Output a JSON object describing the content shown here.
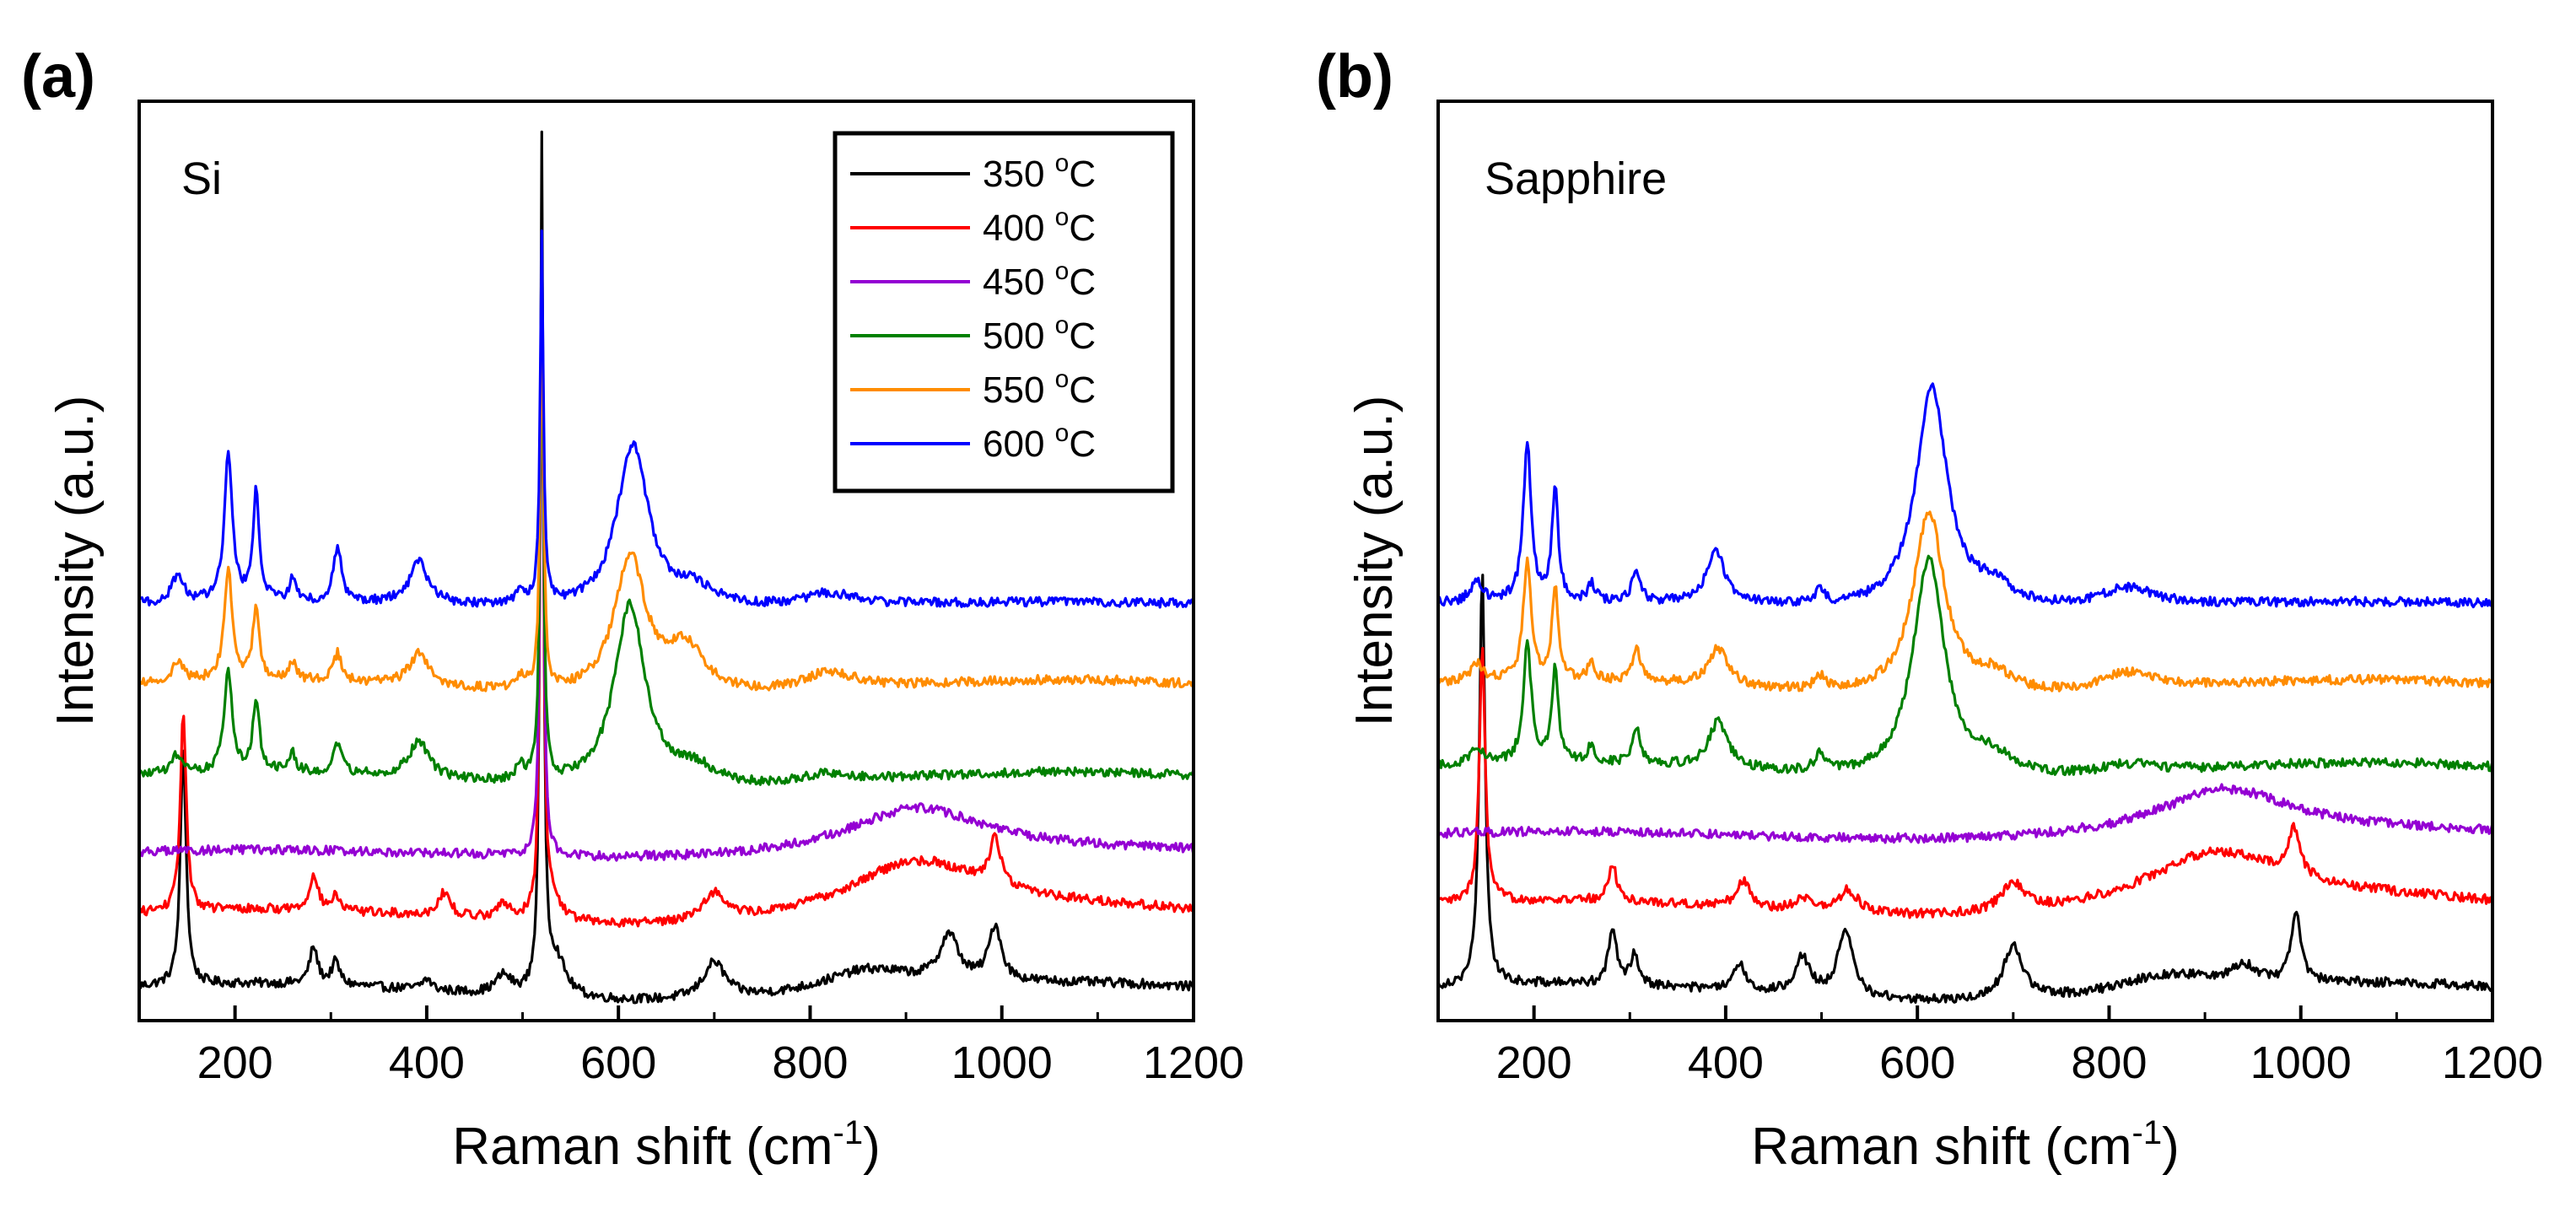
{
  "chart_data": [
    {
      "type": "line",
      "panel_label": "(a)",
      "substrate_label": "Si",
      "xlabel": "Raman shift (cm",
      "xlabel_sup": "-1",
      "xlabel_end": ")",
      "ylabel": "Intensity (a.u.)",
      "xlim": [
        100,
        1200
      ],
      "ylim": [
        0,
        100
      ],
      "xticks": [
        200,
        400,
        600,
        800,
        1000,
        1200
      ],
      "legend_position": "top-right",
      "series": [
        {
          "name": "350 °C",
          "label_main": "350 ",
          "label_sup": "o",
          "label_unit": "C",
          "color": "#000000",
          "baseline": 3,
          "slope": 1,
          "peaks": [
            [
              146,
              26,
              3.5
            ],
            [
              282,
              4,
              5
            ],
            [
              305,
              2.5,
              5
            ],
            [
              400,
              1.2,
              6
            ],
            [
              480,
              2,
              10
            ],
            [
              520,
              92,
              2
            ],
            [
              535,
              4,
              12
            ],
            [
              700,
              4,
              14
            ],
            [
              860,
              2.5,
              60
            ],
            [
              945,
              5,
              12
            ],
            [
              993,
              6,
              8
            ]
          ]
        },
        {
          "name": "400 °C",
          "label_main": "400 ",
          "label_sup": "o",
          "label_unit": "C",
          "color": "#ff0000",
          "baseline": 11,
          "slope": 1,
          "peaks": [
            [
              146,
              22,
              3.5
            ],
            [
              282,
              4,
              5
            ],
            [
              305,
              1.5,
              5
            ],
            [
              418,
              2.5,
              8
            ],
            [
              480,
              1.5,
              10
            ],
            [
              520,
              72,
              2
            ],
            [
              530,
              2.5,
              12
            ],
            [
              700,
              3,
              15
            ],
            [
              910,
              6,
              90
            ],
            [
              993,
              5,
              7
            ]
          ]
        },
        {
          "name": "450 °C",
          "label_main": "450 ",
          "label_sup": "o",
          "label_unit": "C",
          "color": "#9400d3",
          "baseline": 18,
          "slope": 0.5,
          "peaks": [
            [
              520,
              65,
              2
            ],
            [
              910,
              5,
              85
            ]
          ]
        },
        {
          "name": "500 °C",
          "label_main": "500 ",
          "label_sup": "o",
          "label_unit": "C",
          "color": "#008000",
          "baseline": 26,
          "slope": 1,
          "peaks": [
            [
              140,
              2,
              7
            ],
            [
              193,
              11,
              5
            ],
            [
              222,
              8,
              4
            ],
            [
              260,
              2,
              4
            ],
            [
              307,
              3,
              5
            ],
            [
              392,
              4,
              12
            ],
            [
              498,
              1.5,
              6
            ],
            [
              520,
              55,
              2
            ],
            [
              612,
              20,
              20
            ],
            [
              680,
              2,
              25
            ],
            [
              820,
              1,
              35
            ]
          ]
        },
        {
          "name": "550 °C",
          "label_main": "550 ",
          "label_sup": "o",
          "label_unit": "C",
          "color": "#ff8c00",
          "baseline": 36,
          "slope": 1,
          "peaks": [
            [
              140,
              2,
              7
            ],
            [
              193,
              12,
              5
            ],
            [
              222,
              8,
              4
            ],
            [
              260,
              2,
              4
            ],
            [
              307,
              3,
              5
            ],
            [
              392,
              3.5,
              12
            ],
            [
              498,
              1.5,
              6
            ],
            [
              520,
              45,
              2
            ],
            [
              612,
              15,
              20
            ],
            [
              670,
              5,
              25
            ],
            [
              820,
              2,
              35
            ]
          ]
        },
        {
          "name": "600 °C",
          "label_main": "600 ",
          "label_sup": "o",
          "label_unit": "C",
          "color": "#0000ff",
          "baseline": 45,
          "slope": 0.5,
          "peaks": [
            [
              140,
              3,
              7
            ],
            [
              193,
              16,
              5
            ],
            [
              222,
              12,
              4
            ],
            [
              260,
              2.5,
              4
            ],
            [
              307,
              6,
              5
            ],
            [
              392,
              4.5,
              12
            ],
            [
              498,
              1.5,
              6
            ],
            [
              520,
              40,
              2
            ],
            [
              615,
              18,
              20
            ],
            [
              680,
              2,
              25
            ],
            [
              820,
              1.5,
              35
            ]
          ]
        }
      ]
    },
    {
      "type": "line",
      "panel_label": "(b)",
      "substrate_label": "Sapphire",
      "xlabel": "Raman shift (cm",
      "xlabel_sup": "-1",
      "xlabel_end": ")",
      "ylabel": "Intensity (a.u.)",
      "xlim": [
        100,
        1200
      ],
      "ylim": [
        0,
        100
      ],
      "xticks": [
        200,
        400,
        600,
        800,
        1000,
        1200
      ],
      "series": [
        {
          "name": "350 °C",
          "color": "#000000",
          "baseline": 3,
          "slope": 1,
          "peaks": [
            [
              146,
              45,
              3.5
            ],
            [
              282,
              6,
              5
            ],
            [
              305,
              3.5,
              5
            ],
            [
              415,
              3,
              7
            ],
            [
              480,
              4,
              10
            ],
            [
              525,
              7,
              10
            ],
            [
              700,
              6,
              12
            ],
            [
              860,
              2,
              60
            ],
            [
              940,
              2,
              15
            ],
            [
              995,
              8,
              6
            ]
          ]
        },
        {
          "name": "400 °C",
          "color": "#ff0000",
          "baseline": 12,
          "slope": 1,
          "peaks": [
            [
              146,
              28,
              3.5
            ],
            [
              282,
              4,
              5
            ],
            [
              418,
              3,
              8
            ],
            [
              480,
              1.5,
              10
            ],
            [
              528,
              2.5,
              12
            ],
            [
              700,
              3,
              15
            ],
            [
              910,
              6,
              90
            ],
            [
              993,
              5,
              7
            ]
          ]
        },
        {
          "name": "450 °C",
          "color": "#9400d3",
          "baseline": 20,
          "slope": 0.5,
          "peaks": [
            [
              920,
              5,
              85
            ]
          ]
        },
        {
          "name": "500 °C",
          "color": "#008000",
          "baseline": 27,
          "slope": 1,
          "peaks": [
            [
              140,
              2,
              7
            ],
            [
              193,
              13,
              5
            ],
            [
              222,
              10,
              4
            ],
            [
              260,
              2,
              4
            ],
            [
              307,
              4,
              5
            ],
            [
              392,
              5,
              12
            ],
            [
              498,
              2,
              6
            ],
            [
              612,
              24,
              20
            ],
            [
              680,
              2,
              25
            ],
            [
              820,
              1,
              35
            ]
          ]
        },
        {
          "name": "550 °C",
          "color": "#ff8c00",
          "baseline": 36,
          "slope": 1,
          "peaks": [
            [
              140,
              2,
              7
            ],
            [
              193,
              13,
              5
            ],
            [
              222,
              10,
              4
            ],
            [
              260,
              2,
              4
            ],
            [
              307,
              3.5,
              5
            ],
            [
              392,
              4,
              12
            ],
            [
              498,
              1.5,
              6
            ],
            [
              612,
              20,
              20
            ],
            [
              680,
              2,
              25
            ],
            [
              820,
              2,
              35
            ]
          ]
        },
        {
          "name": "600 °C",
          "color": "#0000ff",
          "baseline": 45,
          "slope": 0.5,
          "peaks": [
            [
              140,
              2.5,
              7
            ],
            [
              193,
              17,
              5
            ],
            [
              222,
              12,
              4
            ],
            [
              260,
              2,
              4
            ],
            [
              307,
              3.5,
              5
            ],
            [
              390,
              5.5,
              12
            ],
            [
              498,
              1.5,
              6
            ],
            [
              615,
              24,
              20
            ],
            [
              680,
              2,
              25
            ],
            [
              820,
              2,
              35
            ]
          ]
        }
      ]
    }
  ]
}
